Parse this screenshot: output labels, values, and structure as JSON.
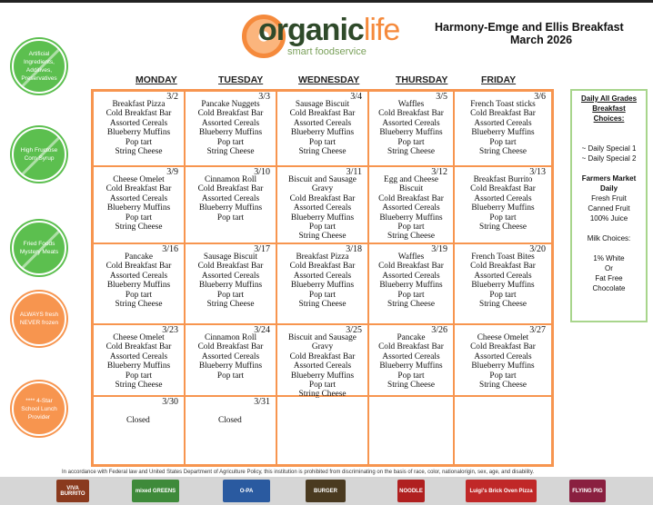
{
  "header": {
    "logo_word_a": "organic",
    "logo_word_b": "life",
    "logo_sub": "smart foodservice",
    "title": "Harmony-Emge and Ellis Breakfast",
    "subtitle": "March 2026"
  },
  "badges": [
    {
      "text": "Artificial Ingredients, Additives, Preservatives",
      "color": "#5cbf4f",
      "crossed": true
    },
    {
      "text": "High Fructose Corn Syrup",
      "color": "#5cbf4f",
      "crossed": true
    },
    {
      "text": "Fried Foods Mystery Meats",
      "color": "#5cbf4f",
      "crossed": true
    },
    {
      "text": "ALWAYS fresh NEVER frozen",
      "color": "#f7954f",
      "crossed": false
    },
    {
      "text": "**** 4-Star School Lunch Provider",
      "color": "#f7954f",
      "crossed": false
    }
  ],
  "days": [
    "MONDAY",
    "TUESDAY",
    "WEDNESDAY",
    "THURSDAY",
    "FRIDAY"
  ],
  "weeks": [
    [
      {
        "date": "3/2",
        "items": [
          "Breakfast Pizza",
          "Cold Breakfast Bar",
          "Assorted Cereals",
          "Blueberry Muffins",
          "Pop tart",
          "String Cheese"
        ]
      },
      {
        "date": "3/3",
        "items": [
          "Pancake Nuggets",
          "Cold Breakfast Bar",
          "Assorted Cereals",
          "Blueberry Muffins",
          "Pop tart",
          "String Cheese"
        ]
      },
      {
        "date": "3/4",
        "items": [
          "Sausage Biscuit",
          "Cold Breakfast Bar",
          "Assorted Cereals",
          "Blueberry Muffins",
          "Pop tart",
          "String Cheese"
        ]
      },
      {
        "date": "3/5",
        "items": [
          "Waffles",
          "Cold Breakfast Bar",
          "Assorted Cereals",
          "Blueberry Muffins",
          "Pop tart",
          "String Cheese"
        ]
      },
      {
        "date": "3/6",
        "items": [
          "French Toast sticks",
          "Cold Breakfast Bar",
          "Assorted Cereals",
          "Blueberry Muffins",
          "Pop tart",
          "String Cheese"
        ]
      }
    ],
    [
      {
        "date": "3/9",
        "items": [
          "Cheese Omelet",
          "Cold Breakfast Bar",
          "Assorted Cereals",
          "Blueberry Muffins",
          "Pop tart",
          "String Cheese"
        ]
      },
      {
        "date": "3/10",
        "items": [
          "Cinnamon Roll",
          "Cold Breakfast Bar",
          "Assorted Cereals",
          "Blueberry Muffins",
          "Pop tart"
        ]
      },
      {
        "date": "3/11",
        "items": [
          "Biscuit and Sausage",
          "Gravy",
          "Cold Breakfast Bar",
          "Assorted Cereals",
          "Blueberry Muffins",
          "Pop tart",
          "String Cheese"
        ]
      },
      {
        "date": "3/12",
        "items": [
          "Egg and Cheese",
          "Biscuit",
          "Cold Breakfast Bar",
          "Assorted Cereals",
          "Blueberry Muffins",
          "Pop tart",
          "String Cheese"
        ]
      },
      {
        "date": "3/13",
        "items": [
          "Breakfast Burrito",
          "Cold Breakfast Bar",
          "Assorted Cereals",
          "Blueberry Muffins",
          "Pop tart",
          "String Cheese"
        ]
      }
    ],
    [
      {
        "date": "3/16",
        "items": [
          "Pancake",
          "Cold Breakfast Bar",
          "Assorted Cereals",
          "Blueberry Muffins",
          "Pop tart",
          "String Cheese"
        ]
      },
      {
        "date": "3/17",
        "items": [
          "Sausage Biscuit",
          "Cold Breakfast Bar",
          "Assorted Cereals",
          "Blueberry Muffins",
          "Pop tart",
          "String Cheese"
        ]
      },
      {
        "date": "3/18",
        "items": [
          "Breakfast Pizza",
          "Cold Breakfast Bar",
          "Assorted Cereals",
          "Blueberry Muffins",
          "Pop tart",
          "String Cheese"
        ]
      },
      {
        "date": "3/19",
        "items": [
          "Waffles",
          "Cold Breakfast Bar",
          "Assorted Cereals",
          "Blueberry Muffins",
          "Pop tart",
          "String Cheese"
        ]
      },
      {
        "date": "3/20",
        "items": [
          "French Toast Bites",
          "Cold Breakfast Bar",
          "Assorted Cereals",
          "Blueberry Muffins",
          "Pop tart",
          "String Cheese"
        ]
      }
    ],
    [
      {
        "date": "3/23",
        "items": [
          "Cheese Omelet",
          "Cold Breakfast Bar",
          "Assorted Cereals",
          "Blueberry Muffins",
          "Pop tart",
          "String Cheese"
        ]
      },
      {
        "date": "3/24",
        "items": [
          "Cinnamon Roll",
          "Cold Breakfast Bar",
          "Assorted Cereals",
          "Blueberry Muffins",
          "Pop tart"
        ]
      },
      {
        "date": "3/25",
        "items": [
          "Biscuit and Sausage",
          "Gravy",
          "Cold Breakfast Bar",
          "Assorted Cereals",
          "Blueberry Muffins",
          "Pop tart",
          "String Cheese"
        ]
      },
      {
        "date": "3/26",
        "items": [
          "Pancake",
          "Cold Breakfast Bar",
          "Assorted Cereals",
          "Blueberry Muffins",
          "Pop tart",
          "String Cheese"
        ]
      },
      {
        "date": "3/27",
        "items": [
          "Cheese Omelet",
          "Cold Breakfast Bar",
          "Assorted Cereals",
          "Blueberry Muffins",
          "Pop tart",
          "String Cheese"
        ]
      }
    ],
    [
      {
        "date": "3/30",
        "closed": "Closed"
      },
      {
        "date": "3/31",
        "closed": "Closed"
      },
      {},
      {},
      {}
    ]
  ],
  "sidebar": {
    "heading": [
      "Daily All Grades",
      "Breakfast",
      "Choices:"
    ],
    "specials": [
      "~ Daily Special 1",
      "~ Daily Special 2"
    ],
    "market_heading": [
      "Farmers Market",
      "Daily"
    ],
    "market_items": [
      "Fresh Fruit",
      "Canned Fruit",
      "100% Juice"
    ],
    "milk_heading": "Milk Choices:",
    "milk_items": [
      "1% White",
      "Or",
      "Fat Free",
      "Chocolate"
    ]
  },
  "notice": "In accordance with Federal law and United States Department of Agriculture Policy, this institution is prohibited from discriminating on the basis of race, color, nationalorigin, sex, age, and disability.",
  "footer_logos": [
    {
      "name": "VIVA BURRITO",
      "color": "#8a3a1e"
    },
    {
      "name": "mixed GREENS",
      "color": "#3e8a3a"
    },
    {
      "name": "O-PA",
      "color": "#2a5aa0"
    },
    {
      "name": "BURGER",
      "color": "#4a3a20"
    },
    {
      "name": "NOODLE",
      "color": "#b02020"
    },
    {
      "name": "Luigi's Brick Oven Pizza",
      "color": "#c02828"
    },
    {
      "name": "FLYING PIG",
      "color": "#8a2040"
    }
  ]
}
